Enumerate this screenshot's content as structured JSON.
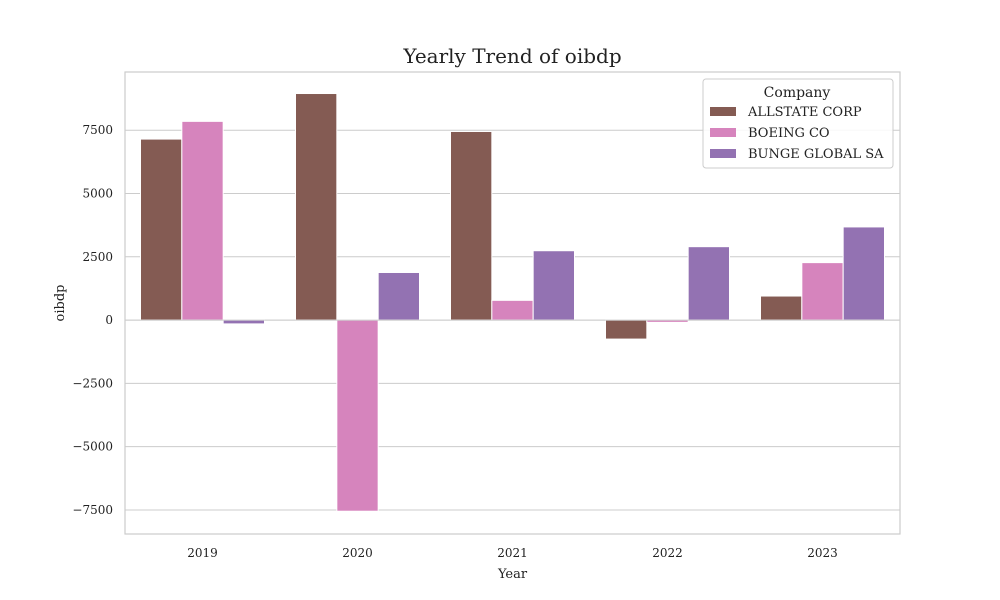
{
  "chart_data": {
    "type": "bar",
    "title": "Yearly Trend of oibdp",
    "xlabel": "Year",
    "ylabel": "oibdp",
    "categories": [
      "2019",
      "2020",
      "2021",
      "2022",
      "2023"
    ],
    "series": [
      {
        "name": "ALLSTATE CORP",
        "color": "#845b53",
        "values": [
          7150,
          8950,
          7450,
          -750,
          950
        ]
      },
      {
        "name": "BOEING CO",
        "color": "#d684bd",
        "values": [
          7850,
          -7550,
          780,
          -90,
          2270
        ]
      },
      {
        "name": "BUNGE GLOBAL SA",
        "color": "#9372b2",
        "values": [
          -150,
          1880,
          2740,
          2900,
          3680
        ]
      }
    ],
    "ylim": [
      -8450,
      9800
    ],
    "yticks": [
      -7500,
      -5000,
      -2500,
      0,
      2500,
      5000,
      7500
    ],
    "ytick_labels": [
      "−7500",
      "−5000",
      "−2500",
      "0",
      "2500",
      "5000",
      "7500"
    ],
    "grid": true,
    "legend": {
      "title": "Company",
      "placement": "top-right"
    }
  }
}
